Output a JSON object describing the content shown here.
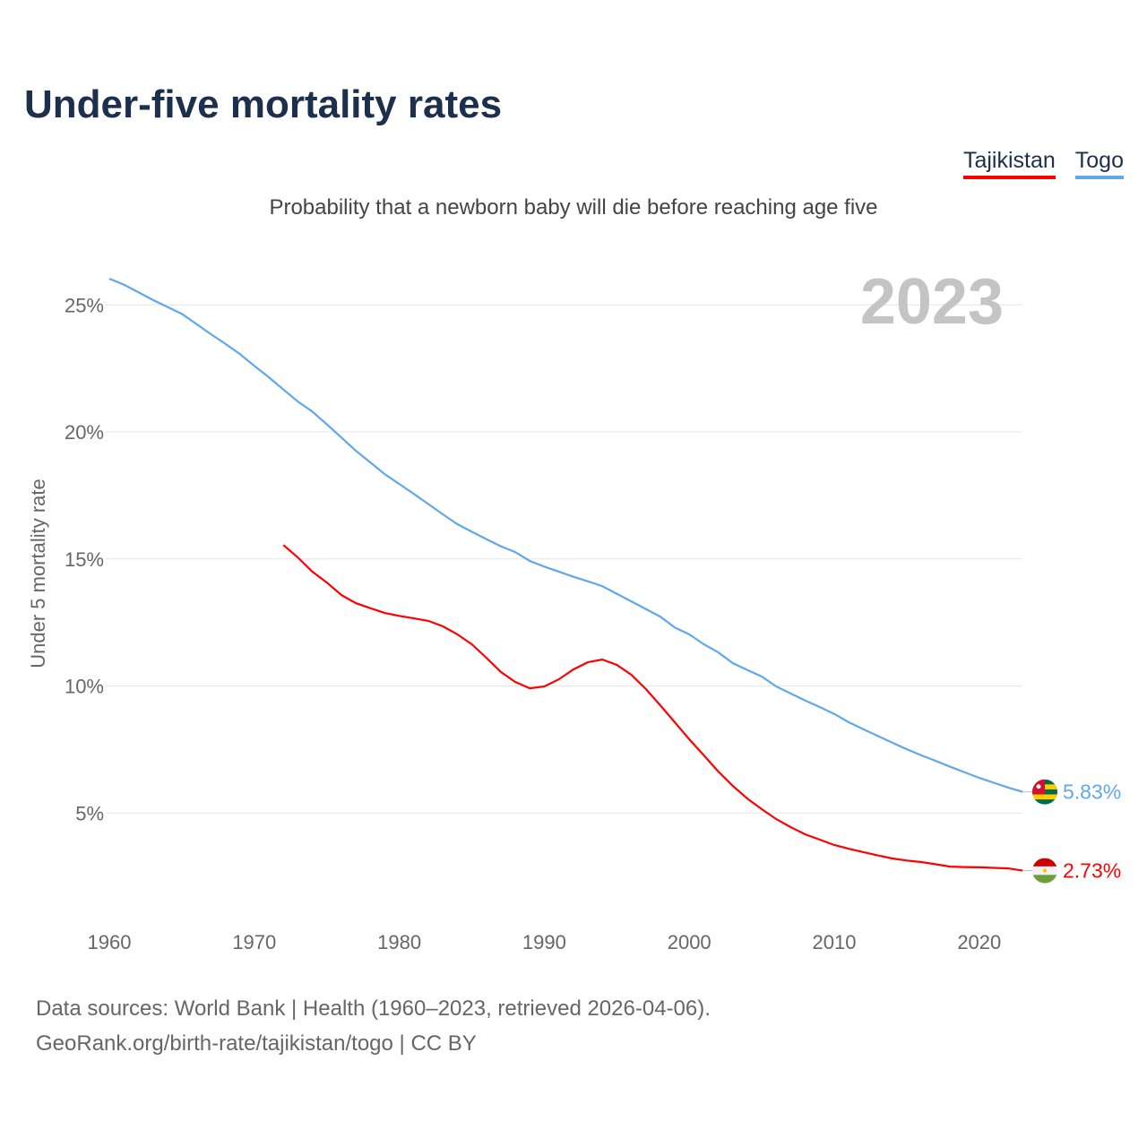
{
  "title": "Under-five mortality rates",
  "subtitle": "Probability that a newborn baby will die before reaching age five",
  "legend": [
    {
      "name": "Tajikistan",
      "color": "#ff0000"
    },
    {
      "name": "Togo",
      "color": "#5fa8ee"
    }
  ],
  "source": {
    "line1": "Data sources: World Bank | Health (1960–2023, retrieved 2026-04-06).",
    "line2": "GeoRank.org/birth-rate/tajikistan/togo | CC BY"
  },
  "chart_data": {
    "type": "line",
    "title": "Under-five mortality rates",
    "ylabel": "Under 5 mortality rate",
    "year_label": "2023",
    "xlim": [
      1960,
      2023
    ],
    "ylim": [
      0,
      27
    ],
    "xticks": [
      1960,
      1970,
      1980,
      1990,
      2000,
      2010,
      2020
    ],
    "yticks": [
      {
        "v": 5,
        "label": "5%"
      },
      {
        "v": 10,
        "label": "10%"
      },
      {
        "v": 15,
        "label": "15%"
      },
      {
        "v": 20,
        "label": "20%"
      },
      {
        "v": 25,
        "label": "25%"
      }
    ],
    "series": [
      {
        "name": "Togo",
        "color": "#5fa8ee",
        "start": 1960,
        "end_label": "5.83%",
        "values": [
          26.03,
          25.8,
          25.5,
          25.2,
          24.92,
          24.65,
          24.25,
          23.85,
          23.47,
          23.07,
          22.6,
          22.15,
          21.67,
          21.2,
          20.8,
          20.3,
          19.78,
          19.26,
          18.8,
          18.34,
          17.95,
          17.56,
          17.16,
          16.76,
          16.37,
          16.07,
          15.78,
          15.5,
          15.27,
          14.92,
          14.7,
          14.5,
          14.3,
          14.12,
          13.93,
          13.63,
          13.33,
          13.03,
          12.73,
          12.3,
          12.03,
          11.64,
          11.32,
          10.9,
          10.63,
          10.37,
          9.98,
          9.7,
          9.43,
          9.17,
          8.9,
          8.57,
          8.3,
          8.03,
          7.77,
          7.51,
          7.27,
          7.05,
          6.82,
          6.6,
          6.38,
          6.19,
          6.0,
          5.83
        ]
      },
      {
        "name": "Tajikistan",
        "color": "#ff0000",
        "start": 1972,
        "end_label": "2.73%",
        "values": [
          15.55,
          15.06,
          14.5,
          14.07,
          13.58,
          13.26,
          13.06,
          12.87,
          12.76,
          12.66,
          12.56,
          12.35,
          12.03,
          11.64,
          11.11,
          10.55,
          10.16,
          9.91,
          9.98,
          10.26,
          10.65,
          10.93,
          11.04,
          10.83,
          10.44,
          9.88,
          9.24,
          8.57,
          7.9,
          7.27,
          6.63,
          6.07,
          5.57,
          5.15,
          4.76,
          4.44,
          4.16,
          3.95,
          3.74,
          3.59,
          3.46,
          3.33,
          3.21,
          3.13,
          3.07,
          2.98,
          2.89,
          2.87,
          2.86,
          2.84,
          2.82,
          2.73
        ]
      }
    ]
  }
}
